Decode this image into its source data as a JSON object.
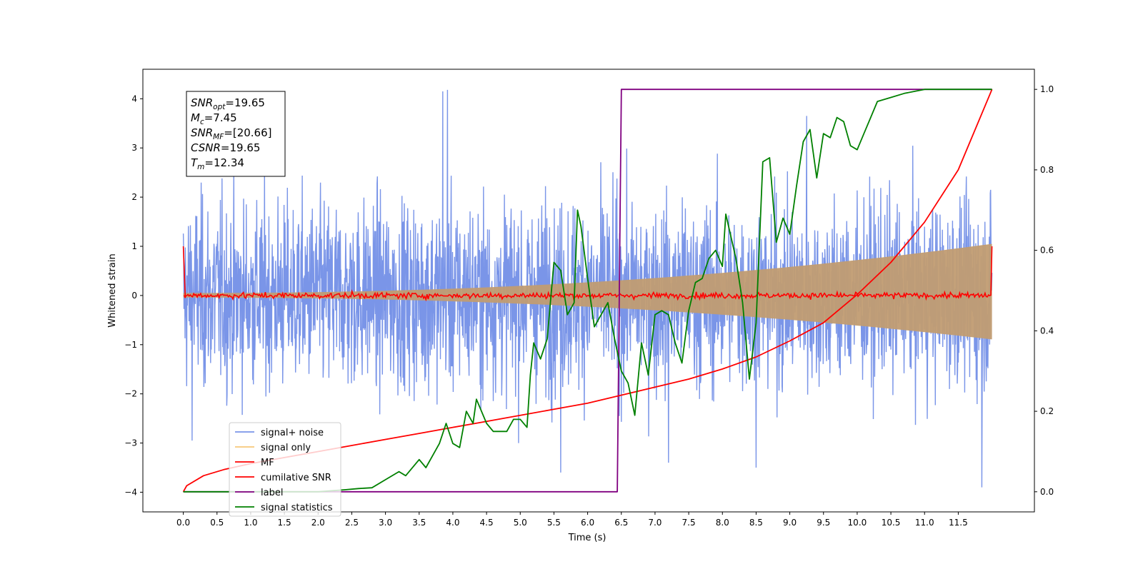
{
  "chart_data": {
    "type": "line",
    "x_axis": {
      "label": "Time (s)",
      "range": [
        -0.6,
        12.63
      ],
      "ticks": [
        0.0,
        0.5,
        1.0,
        1.5,
        2.0,
        2.5,
        3.0,
        3.5,
        4.0,
        4.5,
        5.0,
        5.5,
        6.0,
        6.5,
        7.0,
        7.5,
        8.0,
        8.5,
        9.0,
        9.5,
        10.0,
        10.5,
        11.0,
        11.5
      ],
      "tick_labels": [
        "0.0",
        "0.5",
        "1.0",
        "1.5",
        "2.0",
        "2.5",
        "3.0",
        "3.5",
        "4.0",
        "4.5",
        "5.0",
        "5.5",
        "6.0",
        "6.5",
        "7.0",
        "7.5",
        "8.0",
        "8.5",
        "9.0",
        "9.5",
        "10.0",
        "10.5",
        "11.0",
        "11.5"
      ]
    },
    "y_left": {
      "label": "Whitened strain",
      "range": [
        -4.4,
        4.6
      ],
      "ticks": [
        4,
        3,
        2,
        1,
        0,
        -1,
        -2,
        -3,
        -4
      ],
      "tick_labels": [
        "4",
        "3",
        "2",
        "1",
        "0",
        "−1",
        "−2",
        "−3",
        "−4"
      ]
    },
    "y_right": {
      "range": [
        -0.05,
        1.05
      ],
      "ticks": [
        1.0,
        0.8,
        0.6,
        0.4,
        0.2,
        0.0
      ],
      "tick_labels": [
        "1.0",
        "0.8",
        "0.6",
        "0.4",
        "0.2",
        "0.0"
      ]
    },
    "annotation": {
      "lines": [
        {
          "main": "SNR",
          "sub": "opt",
          "rest": "=19.65"
        },
        {
          "main": "M",
          "sub": "c",
          "rest": "=7.45"
        },
        {
          "main": "SNR",
          "sub": "MF",
          "rest": "=[20.66]"
        },
        {
          "main": "CSNR",
          "sub": "",
          "rest": "=19.65"
        },
        {
          "main": "T",
          "sub": "m",
          "rest": "=12.34"
        }
      ]
    },
    "legend": {
      "placement": "lower-left",
      "entries": [
        {
          "label": "signal+ noise",
          "color": "#7a95e8"
        },
        {
          "label": "signal only",
          "color": "#f7c87a"
        },
        {
          "label": "MF",
          "color": "#ff0000"
        },
        {
          "label": "cumilative SNR",
          "color": "#ff0000"
        },
        {
          "label": "label",
          "color": "#800080"
        },
        {
          "label": "signal statistics",
          "color": "#008000"
        }
      ]
    },
    "series": [
      {
        "name": "signal+ noise",
        "axis": "left",
        "color": "#7a95e8",
        "style": "dense noise",
        "x_range": [
          0.0,
          12.0
        ],
        "std": 1.0,
        "peaks": [
          [
            3.85,
            4.15
          ],
          [
            3.92,
            4.18
          ],
          [
            9.25,
            3.65
          ],
          [
            11.85,
            -3.9
          ],
          [
            5.6,
            -3.6
          ],
          [
            8.5,
            -3.5
          ],
          [
            0.13,
            -2.95
          ],
          [
            7.2,
            -3.4
          ]
        ]
      },
      {
        "name": "signal only",
        "axis": "left",
        "color": "#c19c72",
        "style": "chirp envelope",
        "x_range": [
          0.0,
          12.0
        ],
        "amplitude_start": 0.05,
        "amplitude_end": 1.05
      },
      {
        "name": "MF",
        "axis": "left",
        "color": "#ff0000",
        "style": "noisy around zero",
        "x_range": [
          0.0,
          12.0
        ],
        "std": 0.03,
        "endpoints": [
          1.0,
          1.0
        ]
      },
      {
        "name": "cumilative SNR",
        "axis": "right",
        "color": "#ff0000",
        "points": [
          [
            0.0,
            0.0
          ],
          [
            0.05,
            0.015
          ],
          [
            0.3,
            0.04
          ],
          [
            0.6,
            0.055
          ],
          [
            1.0,
            0.07
          ],
          [
            1.5,
            0.085
          ],
          [
            2.0,
            0.1
          ],
          [
            2.5,
            0.115
          ],
          [
            3.0,
            0.13
          ],
          [
            3.5,
            0.145
          ],
          [
            4.0,
            0.16
          ],
          [
            4.5,
            0.175
          ],
          [
            5.0,
            0.19
          ],
          [
            5.5,
            0.205
          ],
          [
            6.0,
            0.22
          ],
          [
            6.5,
            0.24
          ],
          [
            7.0,
            0.26
          ],
          [
            7.5,
            0.28
          ],
          [
            8.0,
            0.305
          ],
          [
            8.5,
            0.335
          ],
          [
            9.0,
            0.375
          ],
          [
            9.5,
            0.42
          ],
          [
            10.0,
            0.49
          ],
          [
            10.5,
            0.57
          ],
          [
            11.0,
            0.67
          ],
          [
            11.5,
            0.8
          ],
          [
            12.0,
            1.0
          ]
        ]
      },
      {
        "name": "label",
        "axis": "right",
        "color": "#800080",
        "points": [
          [
            0.0,
            0.0
          ],
          [
            6.44,
            0.0
          ],
          [
            6.5,
            1.0
          ],
          [
            12.0,
            1.0
          ]
        ]
      },
      {
        "name": "signal statistics",
        "axis": "right",
        "color": "#008000",
        "points": [
          [
            0.0,
            0.0
          ],
          [
            0.5,
            0.0
          ],
          [
            1.0,
            0.0
          ],
          [
            1.5,
            0.0
          ],
          [
            2.0,
            0.0
          ],
          [
            2.4,
            0.005
          ],
          [
            2.6,
            0.008
          ],
          [
            2.8,
            0.01
          ],
          [
            3.0,
            0.03
          ],
          [
            3.2,
            0.05
          ],
          [
            3.3,
            0.04
          ],
          [
            3.5,
            0.08
          ],
          [
            3.6,
            0.06
          ],
          [
            3.8,
            0.12
          ],
          [
            3.9,
            0.17
          ],
          [
            4.0,
            0.12
          ],
          [
            4.1,
            0.11
          ],
          [
            4.2,
            0.2
          ],
          [
            4.3,
            0.17
          ],
          [
            4.35,
            0.23
          ],
          [
            4.5,
            0.17
          ],
          [
            4.6,
            0.15
          ],
          [
            4.8,
            0.15
          ],
          [
            4.9,
            0.18
          ],
          [
            5.0,
            0.18
          ],
          [
            5.1,
            0.16
          ],
          [
            5.15,
            0.29
          ],
          [
            5.2,
            0.37
          ],
          [
            5.3,
            0.33
          ],
          [
            5.4,
            0.38
          ],
          [
            5.5,
            0.57
          ],
          [
            5.6,
            0.55
          ],
          [
            5.7,
            0.44
          ],
          [
            5.8,
            0.47
          ],
          [
            5.85,
            0.7
          ],
          [
            5.9,
            0.66
          ],
          [
            6.0,
            0.53
          ],
          [
            6.1,
            0.41
          ],
          [
            6.2,
            0.44
          ],
          [
            6.3,
            0.47
          ],
          [
            6.4,
            0.38
          ],
          [
            6.5,
            0.3
          ],
          [
            6.6,
            0.27
          ],
          [
            6.7,
            0.19
          ],
          [
            6.8,
            0.37
          ],
          [
            6.9,
            0.29
          ],
          [
            7.0,
            0.44
          ],
          [
            7.1,
            0.45
          ],
          [
            7.2,
            0.44
          ],
          [
            7.3,
            0.37
          ],
          [
            7.4,
            0.32
          ],
          [
            7.5,
            0.45
          ],
          [
            7.6,
            0.52
          ],
          [
            7.7,
            0.53
          ],
          [
            7.8,
            0.58
          ],
          [
            7.9,
            0.6
          ],
          [
            8.0,
            0.56
          ],
          [
            8.05,
            0.69
          ],
          [
            8.2,
            0.58
          ],
          [
            8.3,
            0.47
          ],
          [
            8.4,
            0.28
          ],
          [
            8.5,
            0.42
          ],
          [
            8.6,
            0.82
          ],
          [
            8.7,
            0.83
          ],
          [
            8.8,
            0.62
          ],
          [
            8.9,
            0.68
          ],
          [
            9.0,
            0.64
          ],
          [
            9.1,
            0.76
          ],
          [
            9.2,
            0.87
          ],
          [
            9.3,
            0.9
          ],
          [
            9.4,
            0.78
          ],
          [
            9.5,
            0.89
          ],
          [
            9.6,
            0.88
          ],
          [
            9.7,
            0.93
          ],
          [
            9.8,
            0.92
          ],
          [
            9.9,
            0.86
          ],
          [
            10.0,
            0.85
          ],
          [
            10.1,
            0.89
          ],
          [
            10.2,
            0.93
          ],
          [
            10.3,
            0.97
          ],
          [
            10.5,
            0.98
          ],
          [
            10.7,
            0.99
          ],
          [
            11.0,
            1.0
          ],
          [
            11.5,
            1.0
          ],
          [
            12.0,
            1.0
          ]
        ]
      }
    ]
  }
}
